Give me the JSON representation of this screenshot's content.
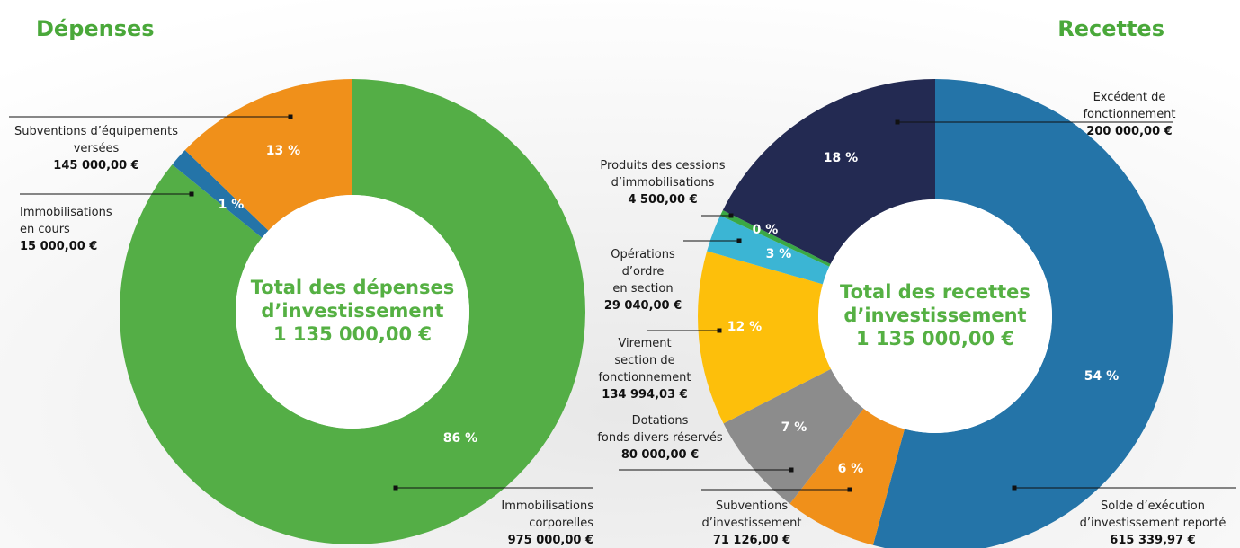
{
  "chart_data": [
    {
      "type": "donut",
      "title": "Dépenses",
      "center_text": [
        "Total des dépenses",
        "d’investissement",
        "1 135 000,00 €"
      ],
      "categories": [
        [
          "Immobilisations",
          "corporelles"
        ],
        [
          "Immobilisations",
          "en cours"
        ],
        [
          "Subventions d’équipements",
          "versées"
        ]
      ],
      "values": [
        975000,
        15000,
        145000
      ],
      "value_labels": [
        "975 000,00 €",
        "15 000,00 €",
        "145 000,00 €"
      ],
      "percentages": [
        86,
        1,
        13
      ],
      "percentage_labels": [
        "86 %",
        "1 %",
        "13 %"
      ],
      "colors": [
        "#54ae46",
        "#2474a8",
        "#f0901a"
      ]
    },
    {
      "type": "donut",
      "title": "Recettes",
      "center_text": [
        "Total des recettes",
        "d’investissement",
        "1 135 000,00 €"
      ],
      "categories": [
        [
          "Solde d’exécution",
          "d’investissement reporté"
        ],
        [
          "Subventions",
          "d’investissement"
        ],
        [
          "Dotations",
          "fonds divers réservés"
        ],
        [
          "Virement",
          "section de",
          "fonctionnement"
        ],
        [
          "Opérations",
          "d’ordre",
          "en section"
        ],
        [
          "Produits des cessions",
          "d’immobilisations"
        ],
        [
          "Excédent de",
          "fonctionnement"
        ]
      ],
      "values": [
        615339.97,
        71126,
        80000,
        134994.03,
        29040,
        4500,
        200000
      ],
      "value_labels": [
        "615 339,97 €",
        "71 126,00 €",
        "80 000,00 €",
        "134 994,03 €",
        "29 040,00 €",
        "4 500,00 €",
        "200 000,00 €"
      ],
      "percentages": [
        54,
        6,
        7,
        12,
        3,
        0,
        18
      ],
      "percentage_labels": [
        "54 %",
        "6 %",
        "7 %",
        "12 %",
        "3 %",
        "0 %",
        "18 %"
      ],
      "colors": [
        "#2474a8",
        "#f0901a",
        "#8c8c8c",
        "#fdbf0b",
        "#3bb5d4",
        "#3aa845",
        "#232a52"
      ]
    }
  ]
}
